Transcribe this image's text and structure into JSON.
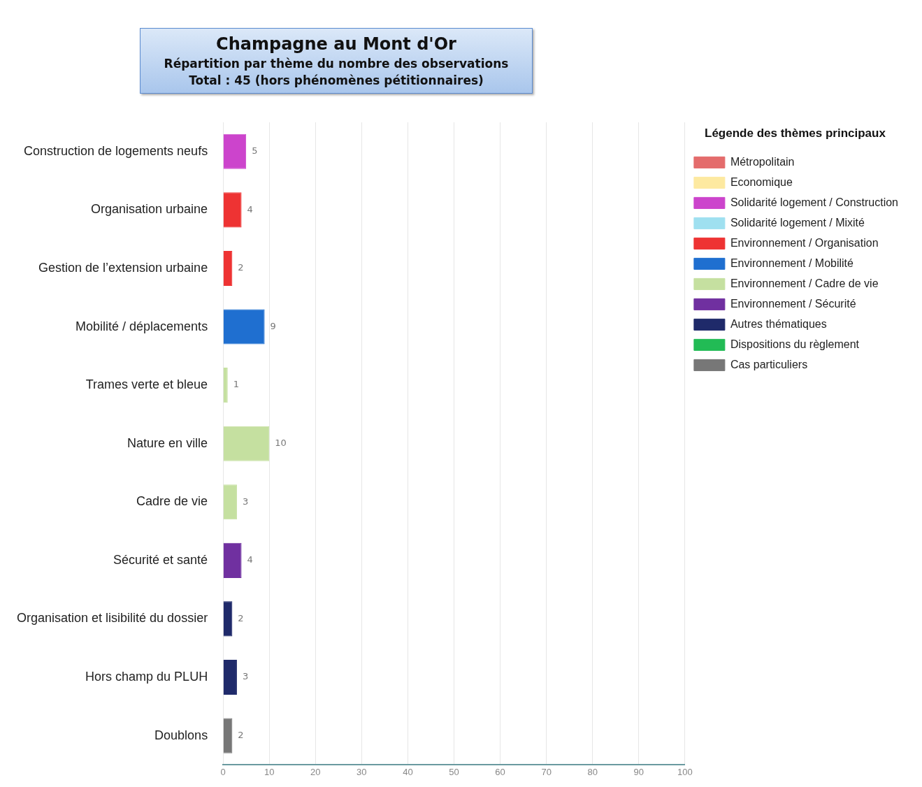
{
  "chart_data": {
    "type": "bar",
    "orientation": "horizontal",
    "stacked": true,
    "title": "Champagne au Mont d'Or",
    "subtitle": "Répartition par thème du nombre des observations",
    "annotations": [
      "Total : 45 (hors phénomènes pétitionnaires)"
    ],
    "legend_title": "Légende des thèmes principaux",
    "legend": "top right",
    "categories": [
      "Construction de logements neufs",
      "Organisation urbaine",
      "Gestion de l’extension urbaine",
      "Mobilité / déplacements",
      "Trames verte et bleue",
      "Nature en ville",
      "Cadre de vie",
      "Sécurité et santé",
      "Organisation et lisibilité du dossier",
      "Hors champ du PLUH",
      "Doublons"
    ],
    "series": [
      {
        "name": "Métropolitain",
        "color": "#e46c6c",
        "values": [
          null,
          null,
          null,
          null,
          null,
          null,
          null,
          null,
          null,
          null,
          null
        ]
      },
      {
        "name": "Economique",
        "color": "#fde9a0",
        "values": [
          null,
          null,
          null,
          null,
          null,
          null,
          null,
          null,
          null,
          null,
          null
        ]
      },
      {
        "name": "Solidarité logement / Construction",
        "color": "#cc44cc",
        "values": [
          5,
          null,
          null,
          null,
          null,
          null,
          null,
          null,
          null,
          null,
          null
        ]
      },
      {
        "name": "Solidarité logement / Mixité",
        "color": "#9fe0f0",
        "values": [
          null,
          null,
          null,
          null,
          null,
          null,
          null,
          null,
          null,
          null,
          null
        ]
      },
      {
        "name": "Environnement / Organisation",
        "color": "#ee3333",
        "values": [
          null,
          4,
          2,
          null,
          null,
          null,
          null,
          null,
          null,
          null,
          null
        ]
      },
      {
        "name": "Environnement / Mobilité",
        "color": "#1f6fd0",
        "values": [
          null,
          null,
          null,
          9,
          null,
          null,
          null,
          null,
          null,
          null,
          null
        ]
      },
      {
        "name": "Environnement / Cadre de vie",
        "color": "#c5e0a0",
        "values": [
          null,
          null,
          null,
          null,
          1,
          10,
          3,
          null,
          null,
          null,
          null
        ]
      },
      {
        "name": "Environnement / Sécurité",
        "color": "#7030a0",
        "values": [
          null,
          null,
          null,
          null,
          null,
          null,
          null,
          4,
          null,
          null,
          null
        ]
      },
      {
        "name": "Autres thématiques",
        "color": "#1f2a6a",
        "values": [
          null,
          null,
          null,
          null,
          null,
          null,
          null,
          null,
          2,
          3,
          null
        ]
      },
      {
        "name": "Dispositions du règlement",
        "color": "#22bb55",
        "values": [
          null,
          null,
          null,
          null,
          null,
          null,
          null,
          null,
          null,
          null,
          null
        ]
      },
      {
        "name": "Cas particuliers",
        "color": "#777777",
        "values": [
          null,
          null,
          null,
          null,
          null,
          null,
          null,
          null,
          null,
          null,
          2
        ]
      }
    ],
    "xlim": [
      0,
      100
    ],
    "xticks": [
      0,
      10,
      20,
      30,
      40,
      50,
      60,
      70,
      80,
      90,
      100
    ],
    "grid": "x",
    "data_labels": true
  }
}
